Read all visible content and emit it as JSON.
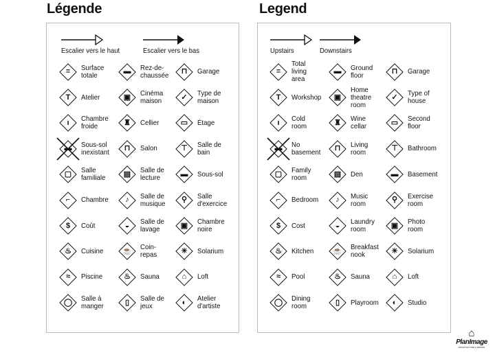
{
  "fr": {
    "title": "Légende",
    "up": "Escalier vers le haut",
    "down": "Escalier vers le bas",
    "items": [
      {
        "label": "Surface\ntotale",
        "icon": "total-area"
      },
      {
        "label": "Rez-de-\nchaussée",
        "icon": "ground-floor"
      },
      {
        "label": "Garage",
        "icon": "garage"
      },
      {
        "label": "Atelier",
        "icon": "hammer"
      },
      {
        "label": "Cinéma\nmaison",
        "icon": "home-theatre"
      },
      {
        "label": "Type de\nmaison",
        "icon": "checkbox"
      },
      {
        "label": "Chambre\nfroide",
        "icon": "thermometer"
      },
      {
        "label": "Cellier",
        "icon": "wine"
      },
      {
        "label": "Étage",
        "icon": "second-floor"
      },
      {
        "label": "Sous-sol\ninexistant",
        "icon": "no-basement"
      },
      {
        "label": "Salon",
        "icon": "sofa"
      },
      {
        "label": "Salle de\nbain",
        "icon": "toilet"
      },
      {
        "label": "Salle\nfamiliale",
        "icon": "tv"
      },
      {
        "label": "Salle de\nlecture",
        "icon": "book"
      },
      {
        "label": "Sous-sol",
        "icon": "basement"
      },
      {
        "label": "Chambre",
        "icon": "bed"
      },
      {
        "label": "Salle de\nmusique",
        "icon": "music"
      },
      {
        "label": "Salle\nd'exercice",
        "icon": "exercise"
      },
      {
        "label": "Coût",
        "icon": "dollar"
      },
      {
        "label": "Salle de\nlavage",
        "icon": "laundry"
      },
      {
        "label": "Chambre\nnoire",
        "icon": "camera"
      },
      {
        "label": "Cuisine",
        "icon": "kitchen"
      },
      {
        "label": "Coin-\nrepas",
        "icon": "coffee"
      },
      {
        "label": "Solarium",
        "icon": "sun"
      },
      {
        "label": "Piscine",
        "icon": "pool"
      },
      {
        "label": "Sauna",
        "icon": "sauna"
      },
      {
        "label": "Loft",
        "icon": "loft"
      },
      {
        "label": "Salle à\nmanger",
        "icon": "dining"
      },
      {
        "label": "Salle de\njeux",
        "icon": "playroom"
      },
      {
        "label": "Atelier\nd'artiste",
        "icon": "palette"
      }
    ]
  },
  "en": {
    "title": "Legend",
    "up": "Upstairs",
    "down": "Downstairs",
    "items": [
      {
        "label": "Total\nliving\narea",
        "icon": "total-area"
      },
      {
        "label": "Ground\nfloor",
        "icon": "ground-floor"
      },
      {
        "label": "Garage",
        "icon": "garage"
      },
      {
        "label": "Workshop",
        "icon": "hammer"
      },
      {
        "label": "Home\ntheatre\nroom",
        "icon": "home-theatre"
      },
      {
        "label": "Type of\nhouse",
        "icon": "checkbox"
      },
      {
        "label": "Cold\nroom",
        "icon": "thermometer"
      },
      {
        "label": "Wine\ncellar",
        "icon": "wine"
      },
      {
        "label": "Second\nfloor",
        "icon": "second-floor"
      },
      {
        "label": "No\nbasement",
        "icon": "no-basement"
      },
      {
        "label": "Living\nroom",
        "icon": "sofa"
      },
      {
        "label": "Bathroom",
        "icon": "toilet"
      },
      {
        "label": "Family\nroom",
        "icon": "tv"
      },
      {
        "label": "Den",
        "icon": "book"
      },
      {
        "label": "Basement",
        "icon": "basement"
      },
      {
        "label": "Bedroom",
        "icon": "bed"
      },
      {
        "label": "Music\nroom",
        "icon": "music"
      },
      {
        "label": "Exercise\nroom",
        "icon": "exercise"
      },
      {
        "label": "Cost",
        "icon": "dollar"
      },
      {
        "label": "Laundry\nroom",
        "icon": "laundry"
      },
      {
        "label": "Photo\nroom",
        "icon": "camera"
      },
      {
        "label": "Kitchen",
        "icon": "kitchen"
      },
      {
        "label": "Breakfast\nnook",
        "icon": "coffee"
      },
      {
        "label": "Solarium",
        "icon": "sun"
      },
      {
        "label": "Pool",
        "icon": "pool"
      },
      {
        "label": "Sauna",
        "icon": "sauna"
      },
      {
        "label": "Loft",
        "icon": "loft"
      },
      {
        "label": "Dining\nroom",
        "icon": "dining"
      },
      {
        "label": "Playroom",
        "icon": "playroom"
      },
      {
        "label": "Studio",
        "icon": "palette"
      }
    ]
  },
  "logo": {
    "name": "PlanImage",
    "sub": "ARCHITECTURE & DESIGN"
  }
}
